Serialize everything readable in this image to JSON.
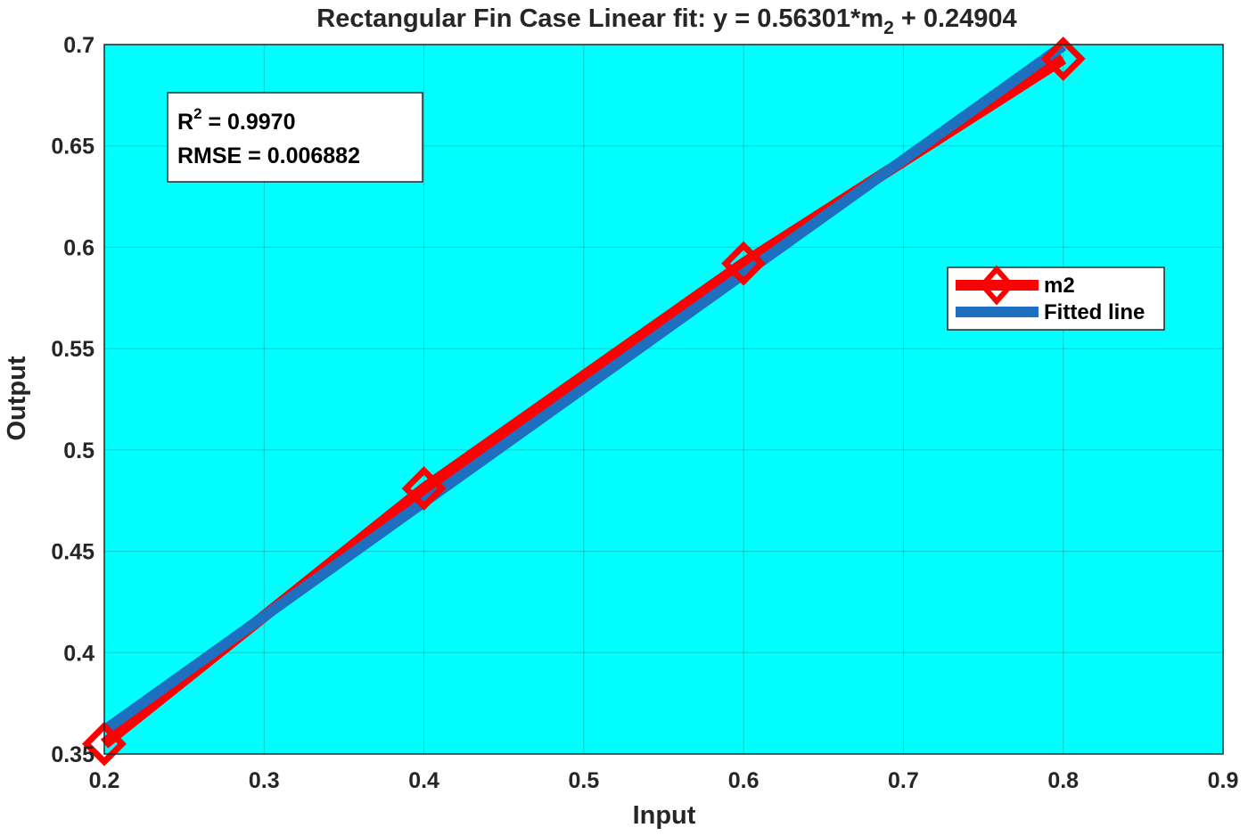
{
  "chart_data": {
    "type": "line",
    "title": {
      "prefix": "Rectangular  Fin  Case  Linear  fit:  y  =  0.56301*m",
      "sub": "2",
      "suffix": "  +  0.24904"
    },
    "xlabel": "Input",
    "ylabel": "Output",
    "xlim": [
      0.2,
      0.9
    ],
    "ylim": [
      0.35,
      0.7
    ],
    "xticks": [
      "0.2",
      "0.3",
      "0.4",
      "0.5",
      "0.6",
      "0.7",
      "0.8",
      "0.9"
    ],
    "yticks": [
      "0.35",
      "0.4",
      "0.45",
      "0.5",
      "0.55",
      "0.6",
      "0.65",
      "0.7"
    ],
    "grid": true,
    "background": "#00ffff",
    "legend_position": "right",
    "series": [
      {
        "name": "m2",
        "color": "#ff0000",
        "marker": "diamond",
        "x": [
          0.2,
          0.4,
          0.6,
          0.8
        ],
        "y": [
          0.355,
          0.481,
          0.592,
          0.693
        ]
      },
      {
        "name": "Fitted line",
        "color": "#1f6fc0",
        "marker": "none",
        "x": [
          0.2,
          0.8
        ],
        "y": [
          0.36164,
          0.69945
        ]
      }
    ],
    "annotation": {
      "r2_label": "R",
      "r2_sup": "2",
      "r2_value": "  =  0.9970",
      "rmse": "RMSE  =  0.006882"
    }
  }
}
